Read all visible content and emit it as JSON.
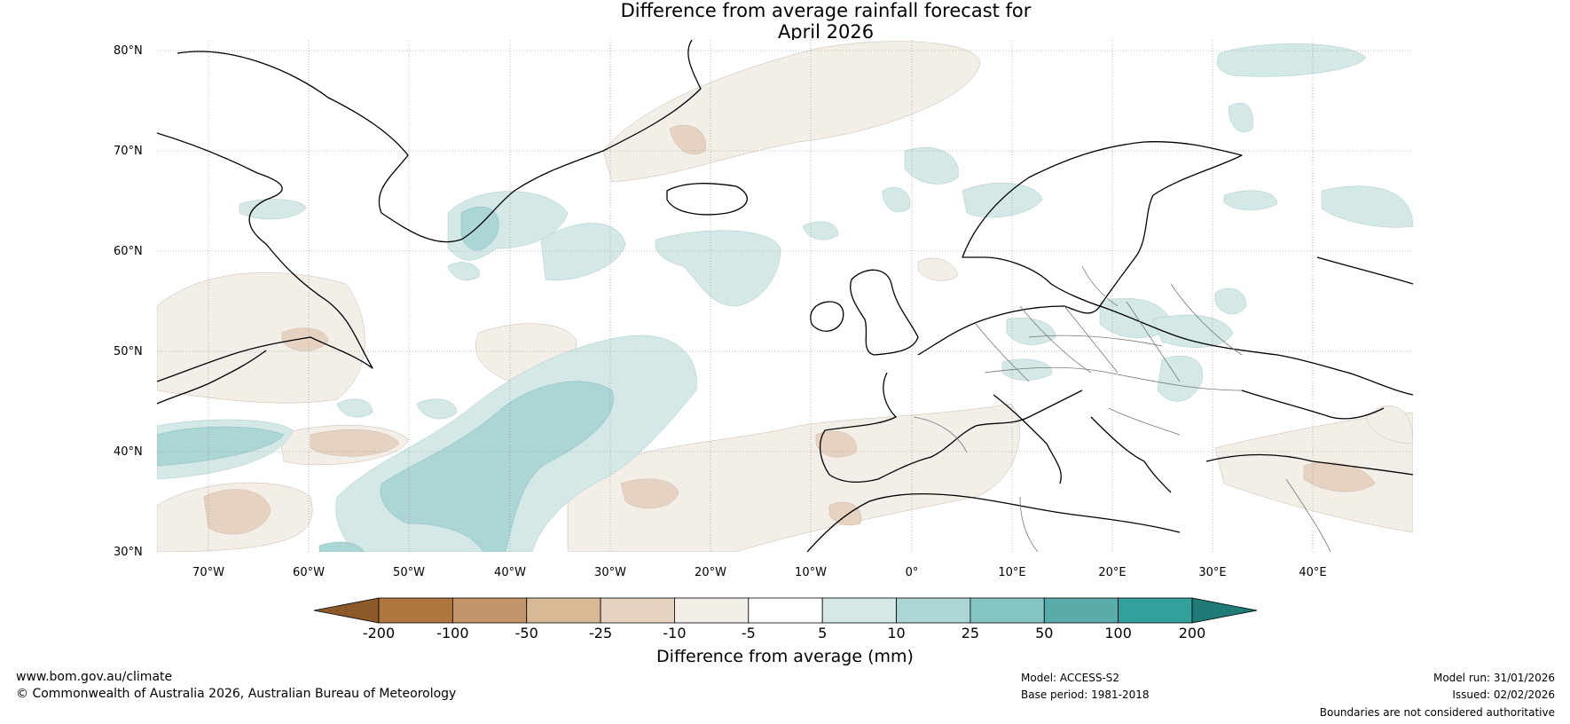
{
  "title": {
    "line1": "Difference from average rainfall forecast for",
    "line2": "April 2026"
  },
  "map": {
    "lat_labels": [
      "80°N",
      "70°N",
      "60°N",
      "50°N",
      "40°N",
      "30°N"
    ],
    "lon_labels": [
      "70°W",
      "60°W",
      "50°W",
      "40°W",
      "30°W",
      "20°W",
      "10°W",
      "0°",
      "10°E",
      "20°E",
      "30°E",
      "40°E"
    ],
    "region": "North Atlantic and Europe"
  },
  "colorbar": {
    "title": "Difference from average (mm)",
    "ticks": [
      "-200",
      "-100",
      "-50",
      "-25",
      "-10",
      "-5",
      "5",
      "10",
      "25",
      "50",
      "100",
      "200"
    ],
    "colors": [
      "#8c5a2a",
      "#b0763f",
      "#c4956a",
      "#d8b996",
      "#e6d2c0",
      "#f3eee8",
      "#ffffff",
      "#d4e8e8",
      "#acd6d6",
      "#84c4c2",
      "#5aacaa",
      "#33a09c",
      "#1f7a78"
    ]
  },
  "footer": {
    "website": "www.bom.gov.au/climate",
    "copyright": "© Commonwealth of Australia 2026, Australian Bureau of Meteorology",
    "model": "Model: ACCESS-S2",
    "base_period": "Base period: 1981-2018",
    "model_run": "Model run: 31/01/2026",
    "issued": "Issued: 02/02/2026",
    "disclaimer": "Boundaries are not considered authoritative"
  }
}
